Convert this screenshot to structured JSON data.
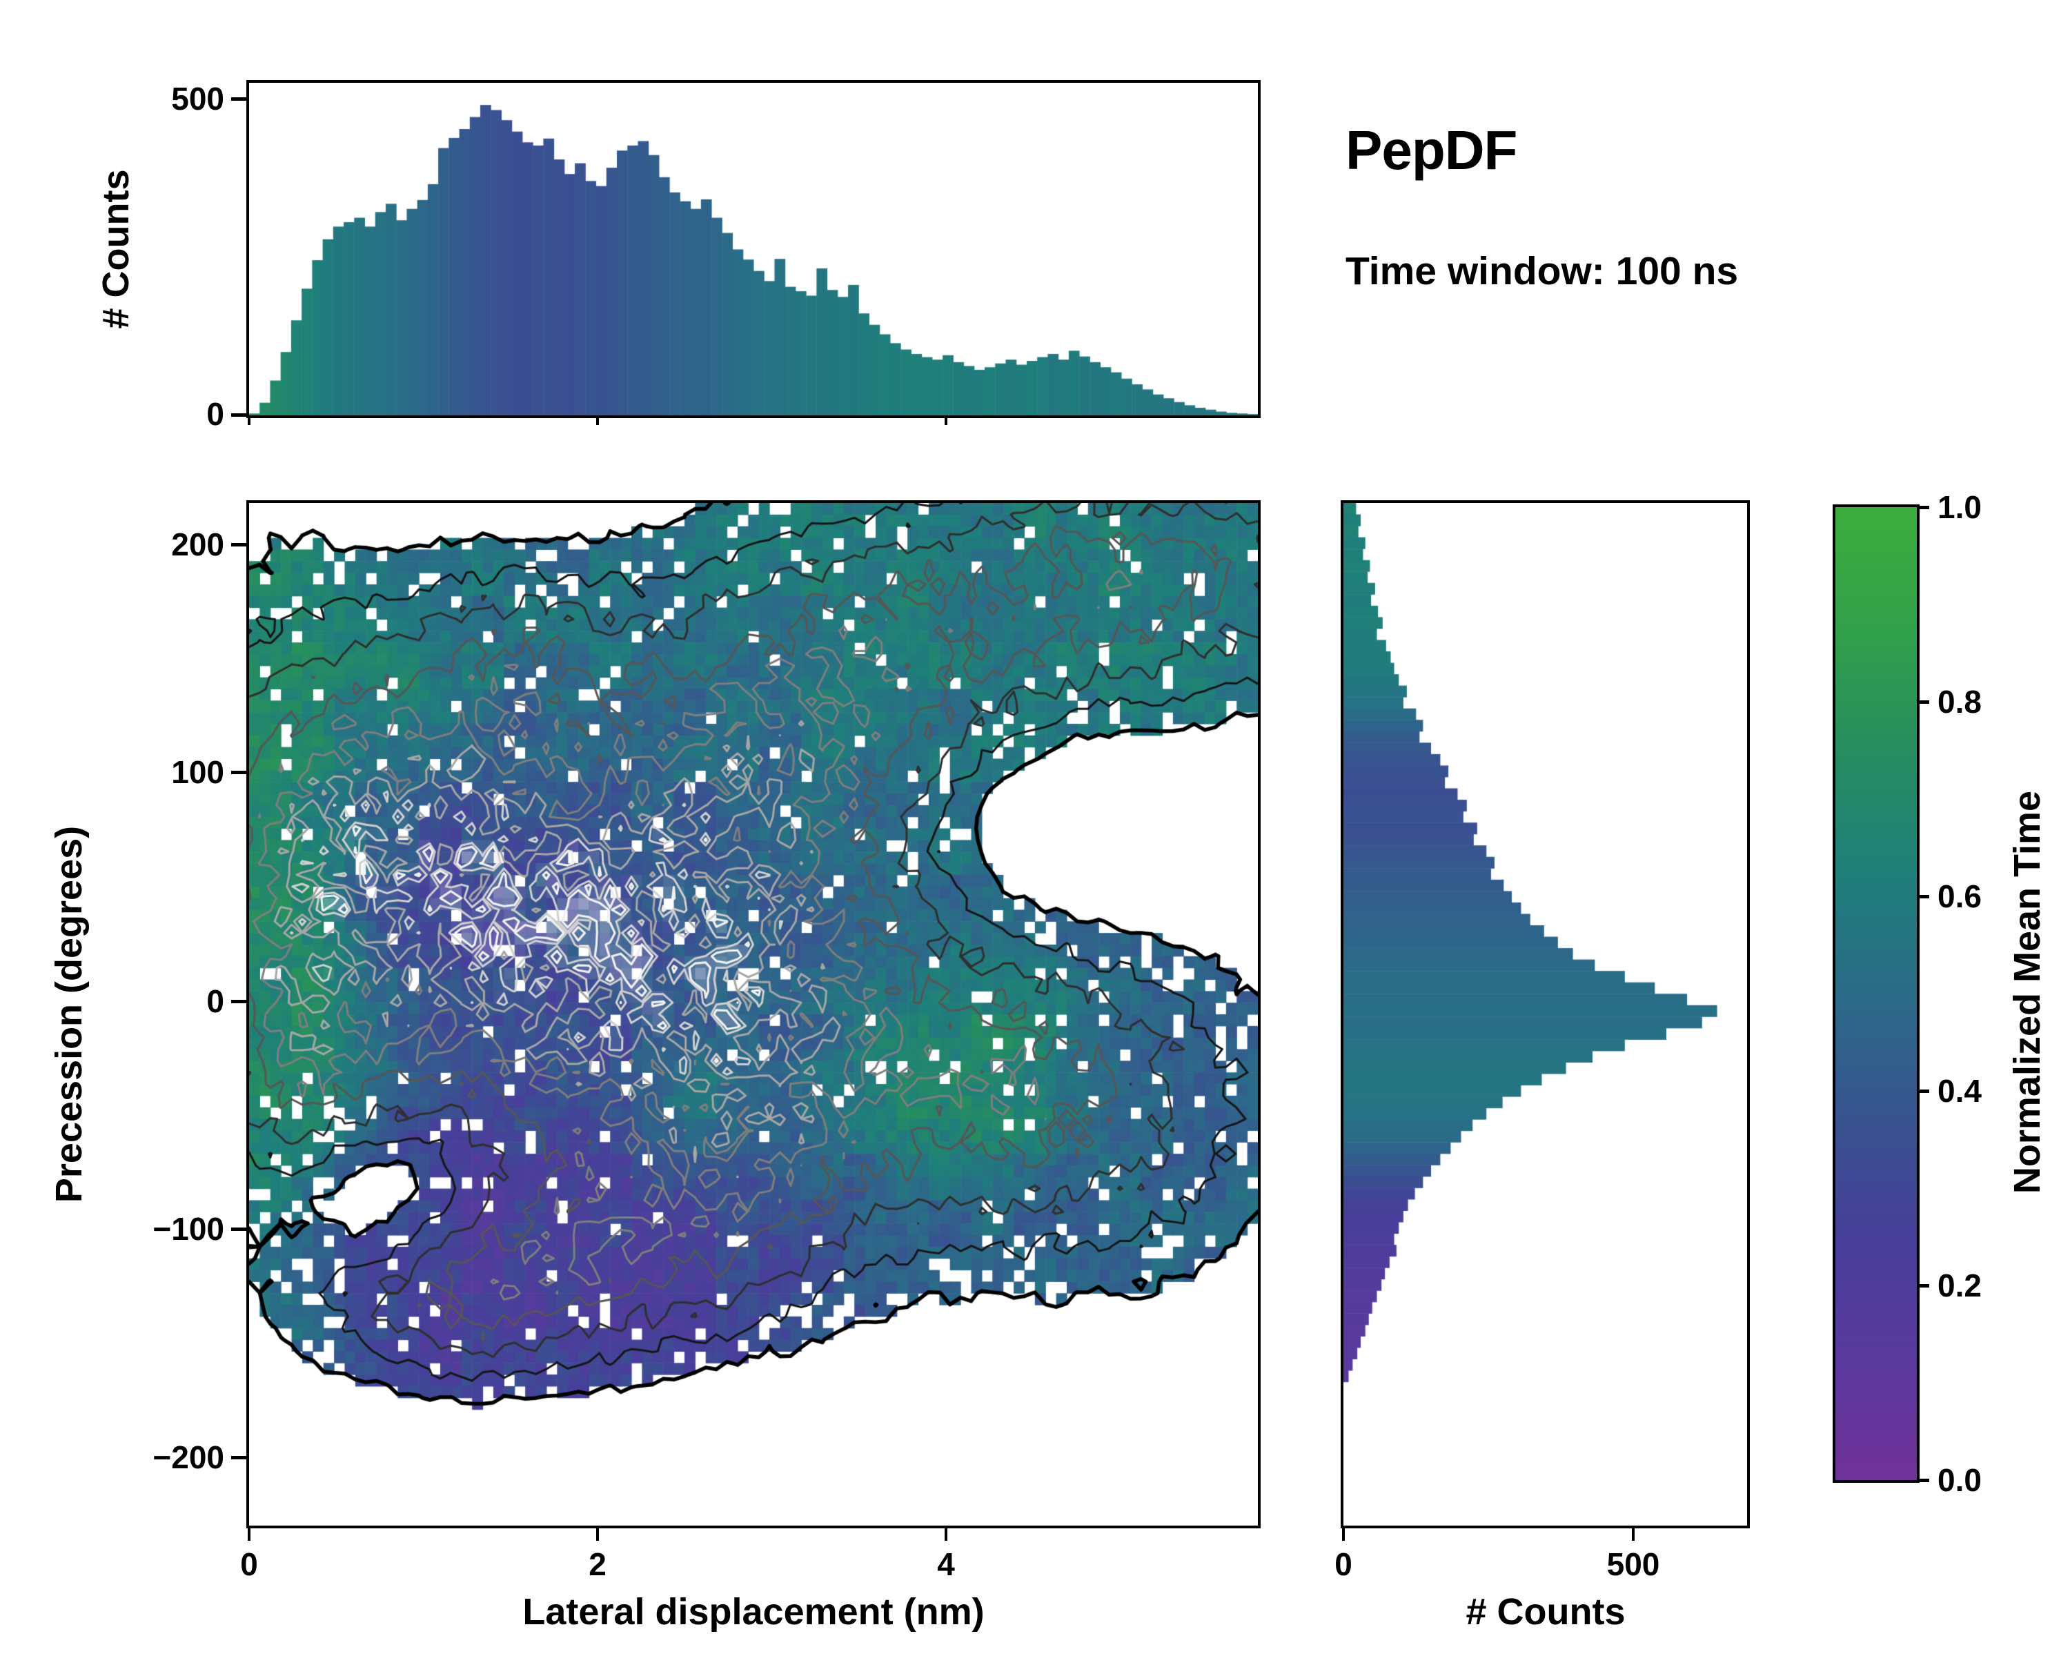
{
  "header": {
    "title": "PepDF",
    "subtitle": "Time window: 100 ns"
  },
  "colormap": {
    "stops": [
      [
        0.0,
        "#72329b"
      ],
      [
        0.12,
        "#5b3a9e"
      ],
      [
        0.25,
        "#473f9a"
      ],
      [
        0.38,
        "#37558f"
      ],
      [
        0.5,
        "#2b6b88"
      ],
      [
        0.62,
        "#1f7f7b"
      ],
      [
        0.74,
        "#258c62"
      ],
      [
        0.87,
        "#31a04b"
      ],
      [
        1.0,
        "#3dae3d"
      ]
    ]
  },
  "chart_data": [
    {
      "type": "bar",
      "name": "top-histogram",
      "ylabel": "# Counts",
      "ytick_labels": [
        "500",
        "0"
      ],
      "yticks": [
        500,
        0
      ],
      "xlim": [
        0,
        5.79
      ],
      "ylim": [
        0,
        525
      ],
      "x_start": 0,
      "bin_width": 0.0603,
      "counts": [
        3,
        20,
        55,
        100,
        150,
        200,
        245,
        278,
        298,
        305,
        312,
        298,
        321,
        334,
        308,
        326,
        340,
        365,
        422,
        438,
        452,
        471,
        490,
        482,
        466,
        448,
        431,
        426,
        437,
        404,
        381,
        398,
        370,
        362,
        391,
        418,
        426,
        433,
        411,
        376,
        352,
        338,
        326,
        341,
        312,
        288,
        262,
        246,
        228,
        212,
        247,
        203,
        196,
        189,
        232,
        198,
        187,
        206,
        161,
        143,
        128,
        114,
        104,
        97,
        92,
        88,
        95,
        84,
        78,
        72,
        76,
        82,
        88,
        80,
        86,
        92,
        97,
        88,
        102,
        93,
        84,
        76,
        68,
        58,
        49,
        41,
        33,
        27,
        21,
        16,
        12,
        9,
        6,
        4,
        3,
        2
      ],
      "color_values": [
        0.74,
        0.72,
        0.7,
        0.68,
        0.66,
        0.64,
        0.62,
        0.6,
        0.58,
        0.57,
        0.56,
        0.55,
        0.54,
        0.53,
        0.52,
        0.5,
        0.48,
        0.46,
        0.44,
        0.42,
        0.4,
        0.38,
        0.37,
        0.36,
        0.35,
        0.34,
        0.34,
        0.35,
        0.36,
        0.35,
        0.34,
        0.36,
        0.38,
        0.37,
        0.38,
        0.4,
        0.42,
        0.41,
        0.43,
        0.44,
        0.45,
        0.46,
        0.47,
        0.46,
        0.48,
        0.5,
        0.52,
        0.53,
        0.54,
        0.55,
        0.54,
        0.56,
        0.57,
        0.58,
        0.57,
        0.58,
        0.59,
        0.58,
        0.6,
        0.61,
        0.62,
        0.61,
        0.62,
        0.63,
        0.62,
        0.63,
        0.62,
        0.61,
        0.6,
        0.61,
        0.62,
        0.6,
        0.59,
        0.61,
        0.62,
        0.6,
        0.58,
        0.59,
        0.6,
        0.58,
        0.57,
        0.58,
        0.59,
        0.58,
        0.57,
        0.58,
        0.57,
        0.56,
        0.57,
        0.58,
        0.57,
        0.56,
        0.57,
        0.56,
        0.55,
        0.56
      ]
    },
    {
      "type": "heatmap",
      "name": "joint-distribution",
      "xlabel": "Lateral displacement (nm)",
      "ylabel": "Precession (degrees)",
      "value_label": "Normalized Mean Time",
      "xtick_labels": [
        "0",
        "2",
        "4"
      ],
      "xticks": [
        0,
        2,
        4
      ],
      "ytick_labels": [
        "200",
        "100",
        "0",
        "−100",
        "−200"
      ],
      "yticks": [
        200,
        100,
        0,
        -100,
        -200
      ],
      "xlim": [
        0,
        5.79
      ],
      "ylim": [
        -230,
        218
      ],
      "grid": {
        "nx": 95,
        "ny": 88
      },
      "seed": 12,
      "threshold": 0.1,
      "base_value": 0.47,
      "base_weight": 0.55,
      "density_blobs": [
        [
          1.4,
          40,
          0.85,
          70,
          1.0
        ],
        [
          2.2,
          5,
          0.8,
          62,
          0.9
        ],
        [
          0.8,
          80,
          0.6,
          55,
          0.8
        ],
        [
          0.2,
          30,
          0.35,
          95,
          0.75
        ],
        [
          1.9,
          -115,
          0.75,
          30,
          0.85
        ],
        [
          1.15,
          -132,
          0.5,
          24,
          0.7
        ],
        [
          3.0,
          60,
          0.65,
          55,
          0.72
        ],
        [
          3.3,
          125,
          0.8,
          45,
          0.7
        ],
        [
          4.25,
          165,
          1.15,
          42,
          0.75
        ],
        [
          5.3,
          192,
          0.7,
          34,
          0.72
        ],
        [
          3.9,
          -25,
          0.95,
          48,
          0.78
        ],
        [
          4.8,
          -55,
          0.75,
          48,
          0.65
        ],
        [
          2.9,
          -75,
          0.6,
          40,
          0.6
        ],
        [
          1.5,
          150,
          0.45,
          28,
          0.55
        ],
        [
          0.5,
          -30,
          0.4,
          30,
          0.45
        ],
        [
          0.75,
          -85,
          0.45,
          28,
          -0.5
        ],
        [
          4.6,
          85,
          0.65,
          36,
          -0.4
        ]
      ],
      "value_blobs": [
        [
          1.55,
          30,
          0.75,
          50,
          0.27,
          1.6
        ],
        [
          1.0,
          75,
          0.55,
          45,
          0.32,
          1.2
        ],
        [
          1.9,
          -120,
          0.8,
          45,
          0.15,
          2.0
        ],
        [
          0.95,
          -85,
          0.55,
          35,
          0.22,
          1.4
        ],
        [
          0.12,
          40,
          0.3,
          90,
          0.8,
          3.5
        ],
        [
          0.85,
          132,
          0.3,
          22,
          0.78,
          2.0
        ],
        [
          1.4,
          155,
          0.5,
          28,
          0.6,
          1.2
        ],
        [
          4.05,
          -28,
          0.38,
          26,
          0.82,
          4.0
        ],
        [
          2.62,
          -42,
          0.22,
          18,
          0.72,
          1.6
        ],
        [
          4.3,
          168,
          1.2,
          48,
          0.62,
          1.6
        ],
        [
          3.2,
          118,
          0.85,
          45,
          0.58,
          1.2
        ],
        [
          5.0,
          195,
          0.8,
          30,
          0.63,
          1.4
        ],
        [
          4.4,
          -50,
          1.1,
          55,
          0.46,
          1.1
        ],
        [
          3.0,
          -20,
          0.8,
          55,
          0.44,
          0.9
        ],
        [
          2.5,
          60,
          0.8,
          50,
          0.4,
          0.9
        ],
        [
          0.45,
          -35,
          0.3,
          28,
          0.74,
          1.5
        ]
      ],
      "contour_levels": [
        {
          "level": 0.1,
          "color": "#000000",
          "width": 5.5
        },
        {
          "level": 0.2,
          "color": "#161616",
          "width": 3
        },
        {
          "level": 0.32,
          "color": "#2f2f2f",
          "width": 3
        },
        {
          "level": 0.45,
          "color": "#565656",
          "width": 3
        },
        {
          "level": 0.58,
          "color": "#7e7e7e",
          "width": 3
        },
        {
          "level": 0.7,
          "color": "#a6a6a6",
          "width": 3
        },
        {
          "level": 0.8,
          "color": "#cfcfcf",
          "width": 3
        },
        {
          "level": 0.86,
          "color": "#f0f0f0",
          "width": 3.2
        }
      ]
    },
    {
      "type": "bar",
      "orientation": "horizontal",
      "name": "right-histogram",
      "xlabel": "# Counts",
      "xtick_labels": [
        "0",
        "500"
      ],
      "xticks": [
        0,
        500
      ],
      "xlim": [
        0,
        700
      ],
      "ylim": [
        -230,
        218
      ],
      "y_start": 218,
      "bin_width": 5,
      "counts": [
        22,
        30,
        26,
        38,
        34,
        46,
        42,
        55,
        48,
        60,
        68,
        58,
        74,
        82,
        88,
        96,
        110,
        104,
        126,
        138,
        132,
        152,
        168,
        182,
        176,
        198,
        214,
        208,
        232,
        226,
        248,
        262,
        256,
        278,
        292,
        308,
        324,
        348,
        372,
        398,
        436,
        488,
        540,
        596,
        648,
        622,
        560,
        488,
        432,
        386,
        344,
        308,
        276,
        248,
        224,
        204,
        186,
        168,
        152,
        138,
        124,
        112,
        104,
        96,
        88,
        92,
        80,
        72,
        66,
        58,
        50,
        44,
        38,
        30,
        24,
        16,
        9,
        0,
        0,
        0,
        0,
        0,
        0,
        0,
        0,
        0,
        0
      ],
      "color_values": [
        0.64,
        0.63,
        0.65,
        0.62,
        0.63,
        0.64,
        0.62,
        0.63,
        0.61,
        0.62,
        0.63,
        0.61,
        0.6,
        0.61,
        0.6,
        0.58,
        0.56,
        0.54,
        0.5,
        0.46,
        0.42,
        0.4,
        0.38,
        0.36,
        0.35,
        0.34,
        0.35,
        0.36,
        0.35,
        0.37,
        0.38,
        0.4,
        0.41,
        0.42,
        0.43,
        0.44,
        0.45,
        0.46,
        0.47,
        0.48,
        0.5,
        0.51,
        0.52,
        0.52,
        0.53,
        0.52,
        0.53,
        0.54,
        0.55,
        0.56,
        0.57,
        0.56,
        0.55,
        0.54,
        0.52,
        0.5,
        0.46,
        0.42,
        0.38,
        0.34,
        0.3,
        0.27,
        0.25,
        0.23,
        0.22,
        0.2,
        0.19,
        0.18,
        0.17,
        0.16,
        0.15,
        0.15,
        0.14,
        0.14,
        0.13,
        0.13,
        0.12,
        0,
        0,
        0,
        0,
        0,
        0,
        0,
        0,
        0,
        0
      ]
    },
    {
      "type": "colorbar",
      "name": "colorbar",
      "label": "Normalized Mean Time",
      "tick_labels": [
        "1.0",
        "0.8",
        "0.6",
        "0.4",
        "0.2",
        "0.0"
      ],
      "range": [
        0,
        1
      ]
    }
  ]
}
